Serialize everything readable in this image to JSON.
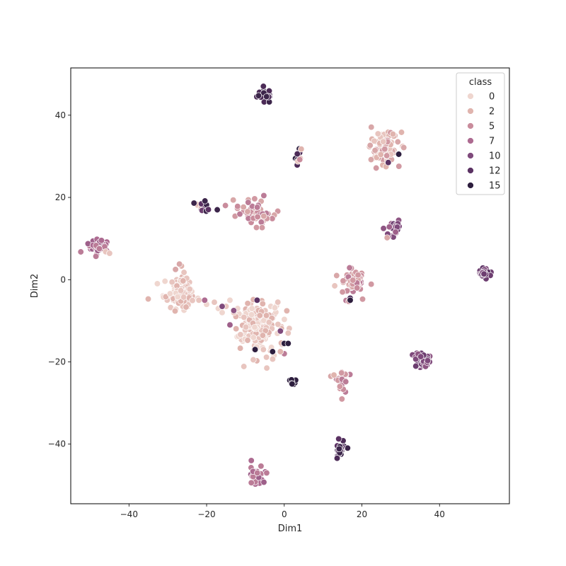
{
  "chart_data": {
    "type": "scatter",
    "title": "",
    "xlabel": "Dim1",
    "ylabel": "Dim2",
    "xlim": [
      -55,
      58
    ],
    "ylim": [
      -54.5,
      51.5
    ],
    "x_ticks": [
      -40,
      -20,
      0,
      20,
      40
    ],
    "y_ticks": [
      -40,
      -20,
      0,
      20,
      40
    ],
    "x_tick_labels": [
      "−40",
      "−20",
      "0",
      "20",
      "40"
    ],
    "y_tick_labels": [
      "−40",
      "−20",
      "0",
      "20",
      "40"
    ],
    "grid": false,
    "legend": {
      "title": "class",
      "placement": "top-right",
      "entries": [
        "0",
        "2",
        "5",
        "7",
        "10",
        "12",
        "15"
      ],
      "entry_classes": [
        0,
        2,
        5,
        7,
        10,
        12,
        15
      ]
    },
    "palette_stops": [
      {
        "class": 0,
        "color": "#efd6cf"
      },
      {
        "class": 2,
        "color": "#e0b4ae"
      },
      {
        "class": 5,
        "color": "#c98c9c"
      },
      {
        "class": 7,
        "color": "#ad6b91"
      },
      {
        "class": 10,
        "color": "#7f4a7c"
      },
      {
        "class": 12,
        "color": "#5b3263"
      },
      {
        "class": 15,
        "color": "#2d1e3e"
      }
    ],
    "clusters": [
      {
        "cx": -5,
        "cy": 45,
        "sx": 1.0,
        "sy": 1.0,
        "n": 22,
        "classes": [
          13,
          14
        ]
      },
      {
        "cx": 3.5,
        "cy": 30.3,
        "sx": 0.6,
        "sy": 1.0,
        "n": 12,
        "classes": [
          15,
          13,
          2
        ]
      },
      {
        "cx": 25.5,
        "cy": 32,
        "sx": 2.0,
        "sy": 2.0,
        "n": 80,
        "classes": [
          1,
          2,
          3,
          4
        ]
      },
      {
        "cx": -21,
        "cy": 18.2,
        "sx": 1.3,
        "sy": 1.1,
        "n": 16,
        "classes": [
          11,
          12,
          13,
          14,
          2
        ]
      },
      {
        "cx": -7.5,
        "cy": 16.3,
        "sx": 2.2,
        "sy": 1.5,
        "n": 60,
        "classes": [
          3,
          4,
          5,
          6
        ]
      },
      {
        "cx": -48,
        "cy": 8.3,
        "sx": 1.3,
        "sy": 1.0,
        "n": 40,
        "classes": [
          6,
          7,
          8
        ]
      },
      {
        "cx": 27.5,
        "cy": 12.5,
        "sx": 0.9,
        "sy": 1.2,
        "n": 25,
        "classes": [
          8,
          9,
          10,
          11
        ]
      },
      {
        "cx": 51.5,
        "cy": 1.3,
        "sx": 0.9,
        "sy": 0.8,
        "n": 30,
        "classes": [
          10,
          11,
          12
        ]
      },
      {
        "cx": 17.5,
        "cy": -0.5,
        "sx": 1.5,
        "sy": 1.6,
        "n": 55,
        "classes": [
          3,
          4,
          5,
          6
        ]
      },
      {
        "cx": -27,
        "cy": -3,
        "sx": 2.0,
        "sy": 2.0,
        "n": 110,
        "classes": [
          0,
          1,
          2
        ]
      },
      {
        "cx": -7,
        "cy": -11,
        "sx": 3.0,
        "sy": 3.0,
        "n": 180,
        "classes": [
          0,
          1,
          2
        ]
      },
      {
        "cx": 35.5,
        "cy": -19.5,
        "sx": 1.1,
        "sy": 1.0,
        "n": 35,
        "classes": [
          9,
          10,
          11
        ]
      },
      {
        "cx": 15,
        "cy": -24.5,
        "sx": 0.9,
        "sy": 1.4,
        "n": 30,
        "classes": [
          4,
          5,
          6
        ]
      },
      {
        "cx": 2.2,
        "cy": -25.3,
        "sx": 0.5,
        "sy": 0.5,
        "n": 8,
        "classes": [
          14,
          15
        ]
      },
      {
        "cx": 14.5,
        "cy": -41,
        "sx": 0.8,
        "sy": 1.0,
        "n": 22,
        "classes": [
          12,
          13,
          14
        ]
      },
      {
        "cx": -6.8,
        "cy": -47.5,
        "sx": 1.1,
        "sy": 1.0,
        "n": 30,
        "classes": [
          6,
          7,
          8
        ]
      }
    ],
    "bridge_points": [
      {
        "x": -22,
        "y": -5,
        "class": 1
      },
      {
        "x": -20,
        "y": -6,
        "class": 0
      },
      {
        "x": -18,
        "y": -5.5,
        "class": 1
      },
      {
        "x": -17,
        "y": -7,
        "class": 0
      },
      {
        "x": -15,
        "y": -6.5,
        "class": 1
      },
      {
        "x": -14,
        "y": -5,
        "class": 0
      },
      {
        "x": -13,
        "y": -8,
        "class": 1
      },
      {
        "x": -16,
        "y": -8,
        "class": 0
      },
      {
        "x": -12,
        "y": -7,
        "class": 0
      },
      {
        "x": -20.5,
        "y": -5,
        "class": 7
      },
      {
        "x": -16,
        "y": -6.5,
        "class": 10
      },
      {
        "x": -14,
        "y": -11,
        "class": 8
      },
      {
        "x": -13,
        "y": -7.5,
        "class": 9
      },
      {
        "x": -7,
        "y": -5,
        "class": 12
      },
      {
        "x": -7.5,
        "y": -17,
        "class": 15
      },
      {
        "x": -3,
        "y": -17.5,
        "class": 15
      },
      {
        "x": 0,
        "y": -15.5,
        "class": 15
      },
      {
        "x": 1,
        "y": -15.5,
        "class": 15
      },
      {
        "x": -1,
        "y": -12.5,
        "class": 10
      },
      {
        "x": 0,
        "y": -18,
        "class": 6
      },
      {
        "x": -1,
        "y": -17.5,
        "class": 2
      },
      {
        "x": 1,
        "y": -13,
        "class": 1
      },
      {
        "x": -4.5,
        "y": -21.5,
        "class": 1
      },
      {
        "x": -46,
        "y": 6.8,
        "class": 1
      },
      {
        "x": -45,
        "y": 6.4,
        "class": 1
      },
      {
        "x": -27,
        "y": 3.8,
        "class": 3
      },
      {
        "x": -28,
        "y": 2.5,
        "class": 3
      },
      {
        "x": 13.5,
        "y": 1,
        "class": 3
      },
      {
        "x": 13,
        "y": -1.5,
        "class": 1
      },
      {
        "x": 15,
        "y": -3,
        "class": 4
      },
      {
        "x": 17,
        "y": -4.5,
        "class": 13
      },
      {
        "x": 17,
        "y": -5,
        "class": 15
      },
      {
        "x": 12,
        "y": -23.5,
        "class": 3
      },
      {
        "x": 12.8,
        "y": -23.2,
        "class": 2
      },
      {
        "x": 26.5,
        "y": 10.2,
        "class": 3
      },
      {
        "x": 26.8,
        "y": 28.5,
        "class": 12
      },
      {
        "x": 29.5,
        "y": 30.5,
        "class": 15
      },
      {
        "x": 3.5,
        "y": 28.8,
        "class": 1
      },
      {
        "x": 4,
        "y": 29.2,
        "class": 5
      }
    ]
  }
}
